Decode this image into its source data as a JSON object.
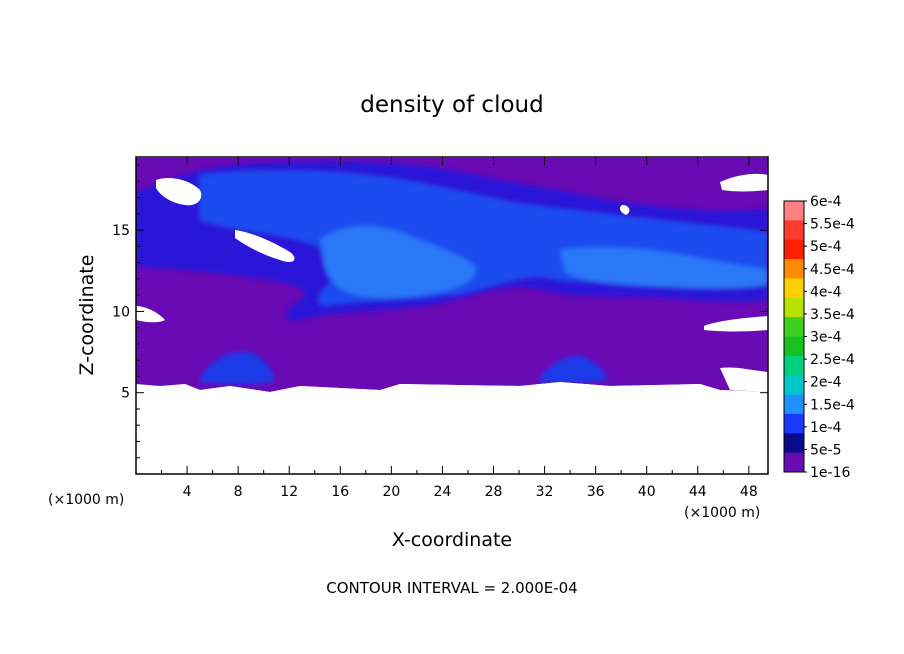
{
  "chart_data": {
    "type": "heatmap",
    "title": "density of cloud",
    "xlabel": "X-coordinate",
    "ylabel": "Z-coordinate",
    "x_unit": "(×1000 m)",
    "z_unit": "(×1000 m)",
    "xlim": [
      0,
      49.5
    ],
    "ylim": [
      0,
      19.5
    ],
    "x_ticks": [
      4,
      8,
      12,
      16,
      20,
      24,
      28,
      32,
      36,
      40,
      44,
      48
    ],
    "y_ticks": [
      5,
      10,
      15
    ],
    "footer": "CONTOUR INTERVAL = 2.000E-04",
    "colorbar": {
      "levels": [
        "6e-4",
        "5.5e-4",
        "5e-4",
        "4.5e-4",
        "4e-4",
        "3.5e-4",
        "3e-4",
        "2.5e-4",
        "2e-4",
        "1.5e-4",
        "1e-4",
        "5e-5",
        "1e-16"
      ],
      "colors": [
        "#ff8080",
        "#ff3b2f",
        "#ff2000",
        "#ff8a00",
        "#ffd000",
        "#b8e000",
        "#40d020",
        "#18c020",
        "#00d080",
        "#00c8c8",
        "#1e90ff",
        "#1a3aff",
        "#0a0a8c",
        "#6a0ab4"
      ]
    },
    "cloud_region": {
      "z_base": 5.3,
      "z_top": 19.5,
      "background_value": "1e-16",
      "core_band_z": [
        10,
        19
      ],
      "max_value": "1.5e-4"
    }
  }
}
